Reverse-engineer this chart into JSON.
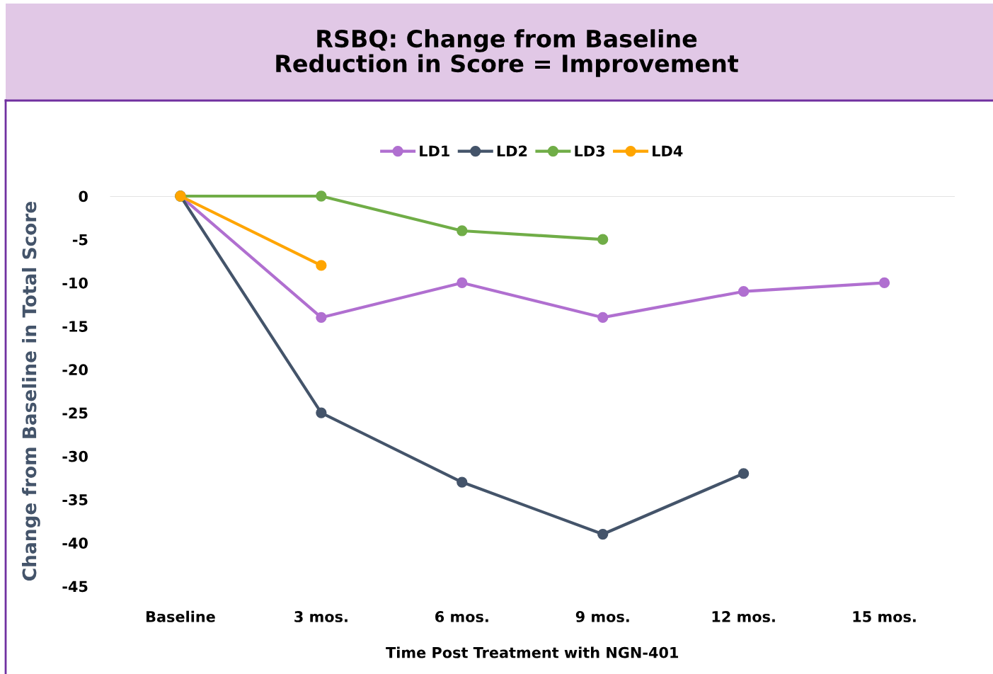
{
  "chart_data": {
    "type": "line",
    "title": "RSBQ: Change from Baseline\nReduction in Score = Improvement",
    "xlabel": "Time Post Treatment with NGN-401",
    "ylabel": "Change from Baseline in Total Score",
    "categories": [
      "Baseline",
      "3 mos.",
      "6 mos.",
      "9 mos.",
      "12 mos.",
      "15 mos."
    ],
    "series": [
      {
        "name": "LD1",
        "color": "#b06fd0",
        "values": [
          0,
          -14,
          -10,
          -14,
          -11,
          -10
        ]
      },
      {
        "name": "LD2",
        "color": "#44546a",
        "values": [
          0,
          -25,
          -33,
          -39,
          -32,
          null
        ]
      },
      {
        "name": "LD3",
        "color": "#70ad47",
        "values": [
          0,
          0,
          -4,
          -5,
          null,
          null
        ]
      },
      {
        "name": "LD4",
        "color": "#ffa500",
        "values": [
          0,
          -8,
          null,
          null,
          null,
          null
        ]
      }
    ],
    "ylim": [
      -45,
      0
    ],
    "yticks": [
      -45,
      -40,
      -35,
      -30,
      -25,
      -20,
      -15,
      -10,
      -5,
      0
    ],
    "ref_lines": [
      {
        "axis": "y",
        "value": 0,
        "color": "#d9d9d9"
      }
    ],
    "grid": false,
    "legend": "top",
    "marker": "circle",
    "line_style": "solid"
  }
}
